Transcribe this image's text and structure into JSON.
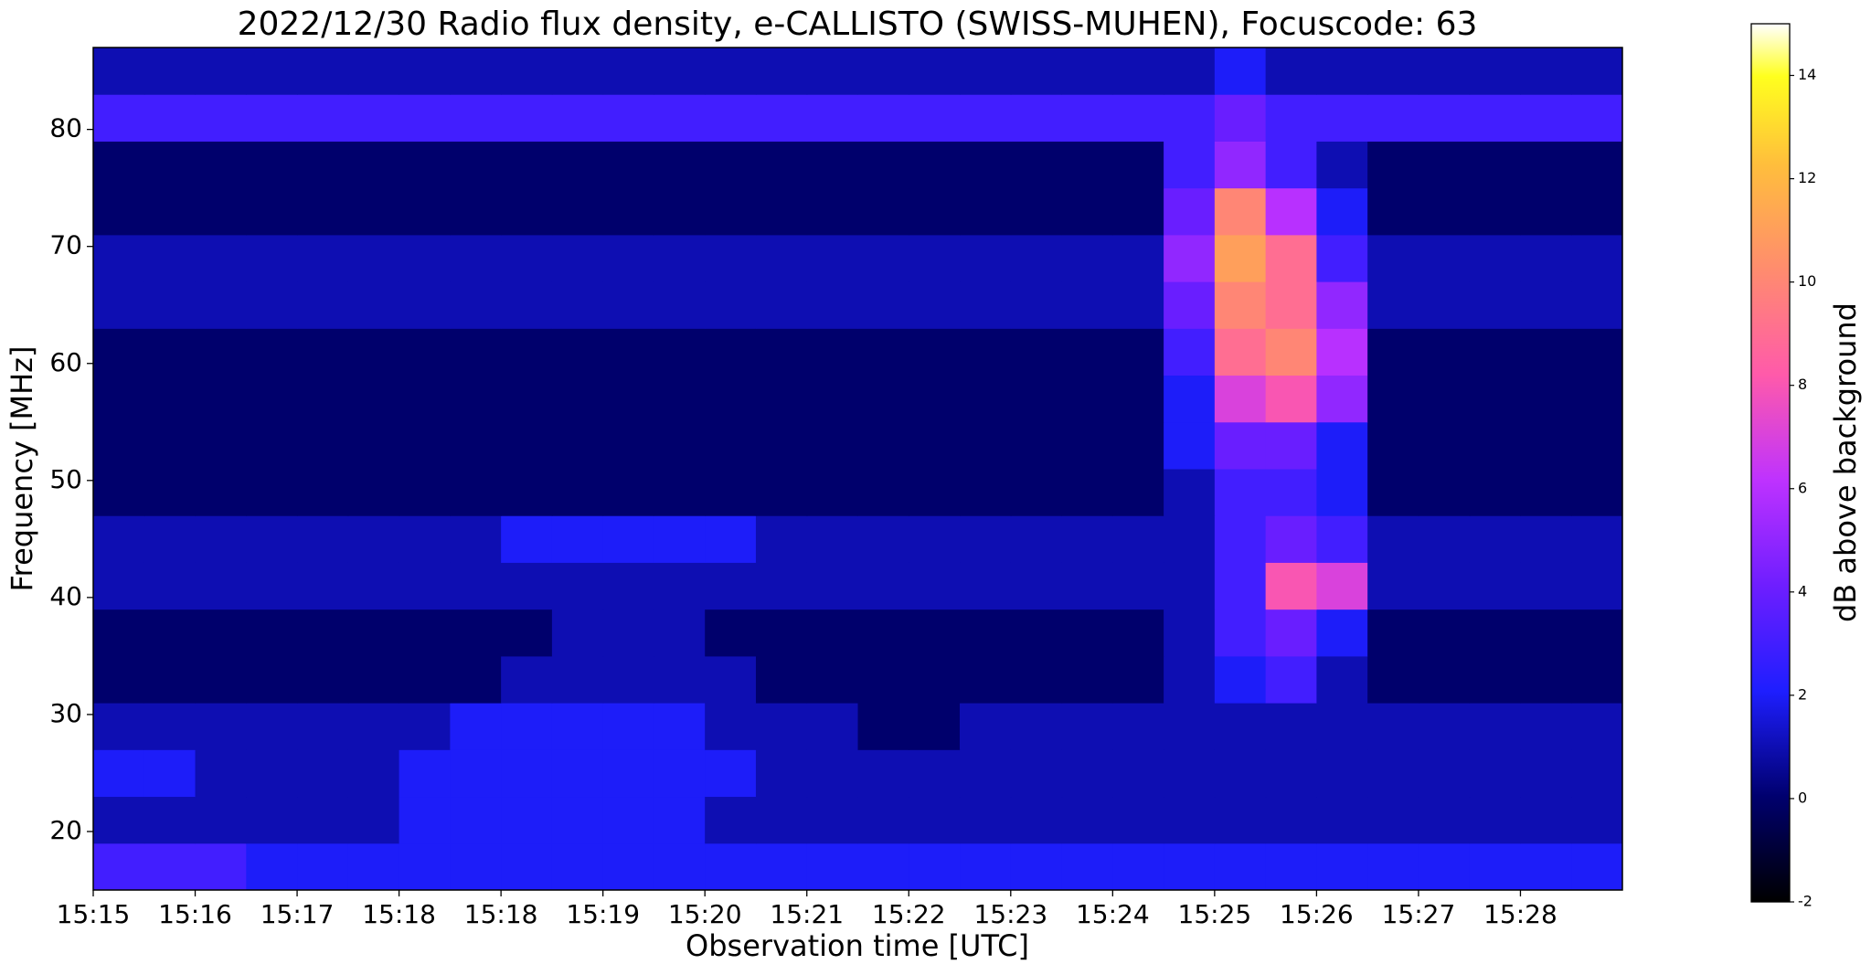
{
  "chart_data": {
    "type": "heatmap",
    "title": "2022/12/30  Radio flux density, e-CALLISTO (SWISS-MUHEN), Focuscode: 63",
    "x_label": "Observation time [UTC]",
    "y_label": "Frequency [MHz]",
    "colorbar_label": "dB above background",
    "colormap": "gnuplot2",
    "xlim": [
      0,
      15
    ],
    "ylim": [
      15,
      87
    ],
    "clim": [
      -2,
      15
    ],
    "grid": false,
    "xticks": [
      {
        "value": 0,
        "label": "15:15"
      },
      {
        "value": 1,
        "label": "15:16"
      },
      {
        "value": 2,
        "label": "15:17"
      },
      {
        "value": 3,
        "label": "15:18"
      },
      {
        "value": 4,
        "label": "15:18"
      },
      {
        "value": 5,
        "label": "15:19"
      },
      {
        "value": 6,
        "label": "15:20"
      },
      {
        "value": 7,
        "label": "15:21"
      },
      {
        "value": 8,
        "label": "15:22"
      },
      {
        "value": 9,
        "label": "15:23"
      },
      {
        "value": 10,
        "label": "15:24"
      },
      {
        "value": 11,
        "label": "15:25"
      },
      {
        "value": 12,
        "label": "15:26"
      },
      {
        "value": 13,
        "label": "15:27"
      },
      {
        "value": 14,
        "label": "15:28"
      }
    ],
    "yticks": [
      20,
      30,
      40,
      50,
      60,
      70,
      80
    ],
    "cticks": [
      -2,
      0,
      2,
      4,
      6,
      8,
      10,
      12,
      14
    ],
    "xbins": [
      0,
      0.5,
      1,
      1.5,
      2,
      2.5,
      3,
      3.5,
      4,
      4.5,
      5,
      5.5,
      6,
      6.5,
      7,
      7.5,
      8,
      8.5,
      9,
      9.5,
      10,
      10.5,
      11,
      11.5,
      12,
      12.5,
      13,
      13.5,
      14,
      14.5,
      15
    ],
    "ybins": [
      15,
      19,
      23,
      27,
      31,
      35,
      39,
      43,
      47,
      51,
      55,
      59,
      63,
      67,
      71,
      75,
      79,
      83,
      87
    ],
    "values": [
      [
        3,
        3,
        3,
        2,
        2,
        2,
        2,
        2,
        2,
        2,
        2,
        2,
        2,
        2,
        2,
        2,
        2,
        2,
        2,
        2,
        2,
        2,
        2,
        2,
        2,
        2,
        2,
        2,
        2,
        2
      ],
      [
        1,
        1,
        1,
        1,
        1,
        1,
        2,
        2,
        2,
        2,
        2,
        2,
        1,
        1,
        1,
        1,
        1,
        1,
        1,
        1,
        1,
        1,
        1,
        1,
        1,
        1,
        1,
        1,
        1,
        1
      ],
      [
        2,
        2,
        1,
        1,
        1,
        1,
        2,
        2,
        2,
        2,
        2,
        2,
        2,
        1,
        1,
        1,
        1,
        1,
        1,
        1,
        1,
        1,
        1,
        1,
        1,
        1,
        1,
        1,
        1,
        1
      ],
      [
        1,
        1,
        1,
        1,
        1,
        1,
        1,
        2,
        2,
        2,
        2,
        2,
        1,
        1,
        1,
        0,
        0,
        1,
        1,
        1,
        1,
        1,
        1,
        1,
        1,
        1,
        1,
        1,
        1,
        1
      ],
      [
        0,
        0,
        0,
        0,
        0,
        0,
        0,
        0,
        1,
        1,
        1,
        1,
        1,
        0,
        0,
        0,
        0,
        0,
        0,
        0,
        0,
        1,
        2,
        3,
        1,
        0,
        0,
        0,
        0,
        0
      ],
      [
        0,
        0,
        0,
        0,
        0,
        0,
        0,
        0,
        0,
        1,
        1,
        1,
        0,
        0,
        0,
        0,
        0,
        0,
        0,
        0,
        0,
        1,
        3,
        4,
        2,
        0,
        0,
        0,
        0,
        0
      ],
      [
        1,
        1,
        1,
        1,
        1,
        1,
        1,
        1,
        1,
        1,
        1,
        1,
        1,
        1,
        1,
        1,
        1,
        1,
        1,
        1,
        1,
        1,
        3,
        8,
        7,
        1,
        1,
        1,
        1,
        1
      ],
      [
        1,
        1,
        1,
        1,
        1,
        1,
        1,
        1,
        2,
        2,
        2,
        2,
        2,
        1,
        1,
        1,
        1,
        1,
        1,
        1,
        1,
        1,
        3,
        4,
        3,
        1,
        1,
        1,
        1,
        1
      ],
      [
        0,
        0,
        0,
        0,
        0,
        0,
        0,
        0,
        0,
        0,
        0,
        0,
        0,
        0,
        0,
        0,
        0,
        0,
        0,
        0,
        0,
        1,
        3,
        3,
        2,
        0,
        0,
        0,
        0,
        0
      ],
      [
        0,
        0,
        0,
        0,
        0,
        0,
        0,
        0,
        0,
        0,
        0,
        0,
        0,
        0,
        0,
        0,
        0,
        0,
        0,
        0,
        0,
        2,
        4,
        4,
        2,
        0,
        0,
        0,
        0,
        0
      ],
      [
        0,
        0,
        0,
        0,
        0,
        0,
        0,
        0,
        0,
        0,
        0,
        0,
        0,
        0,
        0,
        0,
        0,
        0,
        0,
        0,
        0,
        2,
        7,
        8,
        5,
        0,
        0,
        0,
        0,
        0
      ],
      [
        0,
        0,
        0,
        0,
        0,
        0,
        0,
        0,
        0,
        0,
        0,
        0,
        0,
        0,
        0,
        0,
        0,
        0,
        0,
        0,
        0,
        3,
        9,
        10,
        6,
        0,
        0,
        0,
        0,
        0
      ],
      [
        1,
        1,
        1,
        1,
        1,
        1,
        1,
        1,
        1,
        1,
        1,
        1,
        1,
        1,
        1,
        1,
        1,
        1,
        1,
        1,
        1,
        4,
        10,
        9,
        5,
        1,
        1,
        1,
        1,
        1
      ],
      [
        1,
        1,
        1,
        1,
        1,
        1,
        1,
        1,
        1,
        1,
        1,
        1,
        1,
        1,
        1,
        1,
        1,
        1,
        1,
        1,
        1,
        5,
        11,
        9,
        3,
        1,
        1,
        1,
        1,
        1
      ],
      [
        0,
        0,
        0,
        0,
        0,
        0,
        0,
        0,
        0,
        0,
        0,
        0,
        0,
        0,
        0,
        0,
        0,
        0,
        0,
        0,
        0,
        4,
        10,
        6,
        2,
        0,
        0,
        0,
        0,
        0
      ],
      [
        0,
        0,
        0,
        0,
        0,
        0,
        0,
        0,
        0,
        0,
        0,
        0,
        0,
        0,
        0,
        0,
        0,
        0,
        0,
        0,
        0,
        3,
        5,
        3,
        1,
        0,
        0,
        0,
        0,
        0
      ],
      [
        3,
        3,
        3,
        3,
        3,
        3,
        3,
        3,
        3,
        3,
        3,
        3,
        3,
        3,
        3,
        3,
        3,
        3,
        3,
        3,
        3,
        3,
        4,
        3,
        3,
        3,
        3,
        3,
        3,
        3
      ],
      [
        1,
        1,
        1,
        1,
        1,
        1,
        1,
        1,
        1,
        1,
        1,
        1,
        1,
        1,
        1,
        1,
        1,
        1,
        1,
        1,
        1,
        1,
        2,
        1,
        1,
        1,
        1,
        1,
        1,
        1
      ]
    ]
  }
}
